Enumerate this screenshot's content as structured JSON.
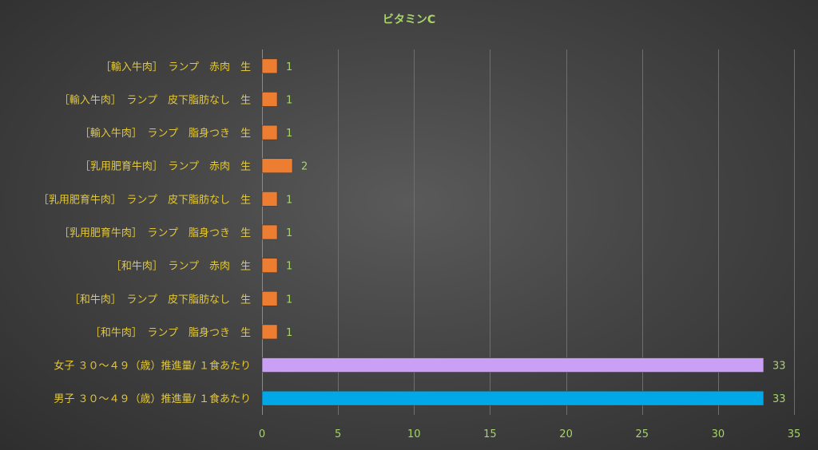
{
  "chart_data": {
    "type": "bar",
    "orientation": "horizontal",
    "title": "ビタミンC",
    "xlabel": "",
    "ylabel": "",
    "xlim": [
      0,
      35
    ],
    "x_ticks": [
      0,
      5,
      10,
      15,
      20,
      25,
      30,
      35
    ],
    "grid": true,
    "legend": "none",
    "categories": [
      "［輸入牛肉］　ランプ　赤肉　生",
      "［輸入牛肉］　ランプ　皮下脂肪なし　生",
      "［輸入牛肉］　ランプ　脂身つき　生",
      "［乳用肥育牛肉］　ランプ　赤肉　生",
      "［乳用肥育牛肉］　ランプ　皮下脂肪なし　生",
      "［乳用肥育牛肉］　ランプ　脂身つき　生",
      "［和牛肉］　ランプ　赤肉　生",
      "［和牛肉］　ランプ　皮下脂肪なし　生",
      "［和牛肉］　ランプ　脂身つき　生",
      "女子 ３０～４９（歳）推進量/ １食あたり",
      "男子 ３０～４９（歳）推進量/ １食あたり"
    ],
    "values": [
      1,
      1,
      1,
      2,
      1,
      1,
      1,
      1,
      1,
      33,
      33
    ],
    "data_labels": [
      "1",
      "1",
      "1",
      "2",
      "1",
      "1",
      "1",
      "1",
      "1",
      "33",
      "33"
    ],
    "bar_colors": [
      "#ed7d31",
      "#ed7d31",
      "#ed7d31",
      "#ed7d31",
      "#ed7d31",
      "#ed7d31",
      "#ed7d31",
      "#ed7d31",
      "#ed7d31",
      "#c9a0f5",
      "#00a8e8"
    ]
  }
}
